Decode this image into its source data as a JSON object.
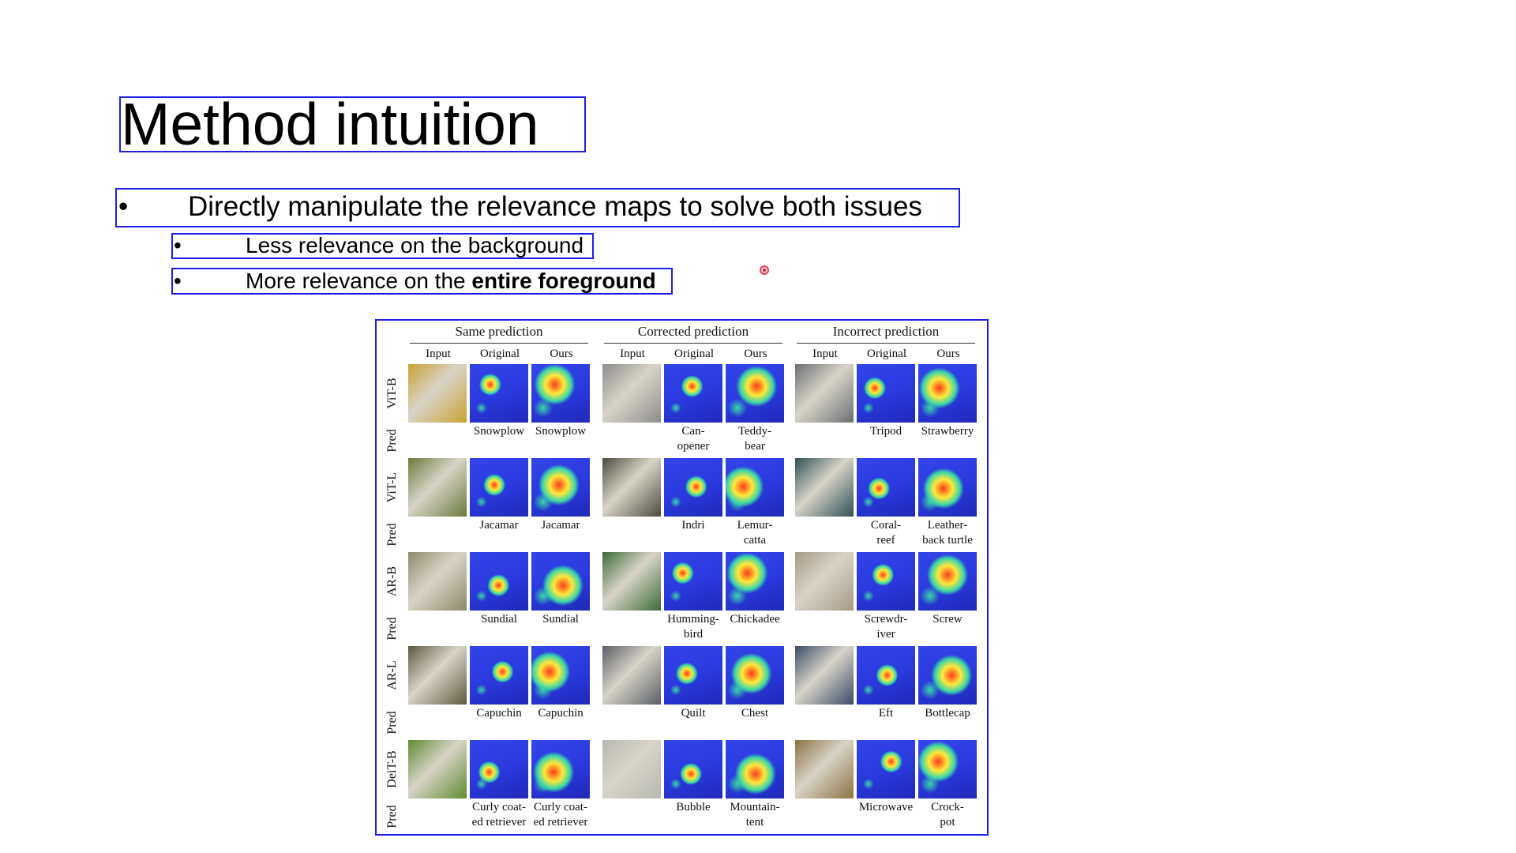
{
  "slide": {
    "title": "Method intuition",
    "bullets": [
      {
        "symbol": "•",
        "text": "Directly manipulate the relevance maps to solve both issues"
      },
      {
        "symbol": "•",
        "text": "Less relevance on the background"
      },
      {
        "symbol": "•",
        "text_prefix": "More relevance on the ",
        "text_bold": "entire foreground"
      }
    ]
  },
  "figure": {
    "groups": [
      "Same prediction",
      "Corrected prediction",
      "Incorrect prediction"
    ],
    "column_headers": [
      "Input",
      "Original",
      "Ours"
    ],
    "models": [
      "ViT-B",
      "ViT-L",
      "AR-B",
      "AR-L",
      "DeiT-B"
    ],
    "pred_label": "Pred",
    "rows": [
      {
        "model": "ViT-B",
        "labels": [
          "Snowplow",
          "Snowplow",
          "Can-\nopener",
          "Teddy-\nbear",
          "Tripod",
          "Strawberry"
        ]
      },
      {
        "model": "ViT-L",
        "labels": [
          "Jacamar",
          "Jacamar",
          "Indri",
          "Lemur-\ncatta",
          "Coral-\nreef",
          "Leather-\nback turtle"
        ]
      },
      {
        "model": "AR-B",
        "labels": [
          "Sundial",
          "Sundial",
          "Humming-\nbird",
          "Chickadee",
          "Screwdr-\niver",
          "Screw"
        ]
      },
      {
        "model": "AR-L",
        "labels": [
          "Capuchin",
          "Capuchin",
          "Quilt",
          "Chest",
          "Eft",
          "Bottlecap"
        ]
      },
      {
        "model": "DeiT-B",
        "labels": [
          "Curly coat-\ned retriever",
          "Curly coat-\ned retriever",
          "Bubble",
          "Mountain-\ntent",
          "Microwave",
          "Crock-\npot"
        ]
      }
    ],
    "input_colors": [
      [
        "#c9a233",
        "#8d8d8d",
        "#6b6f74"
      ],
      [
        "#6a7a3c",
        "#4c4a3e",
        "#2f4f55"
      ],
      [
        "#8d8a6c",
        "#3e6a3a",
        "#a59a86"
      ],
      [
        "#5d5a40",
        "#5a5e66",
        "#3a4a66"
      ],
      [
        "#5f8a2f",
        "#b7b9b2",
        "#8a7240"
      ]
    ],
    "heat_colors": {
      "background": "#2a3adf",
      "hot": "#ff3a1a",
      "warm": "#ffe93a",
      "mid": "#3ad7a8"
    }
  }
}
